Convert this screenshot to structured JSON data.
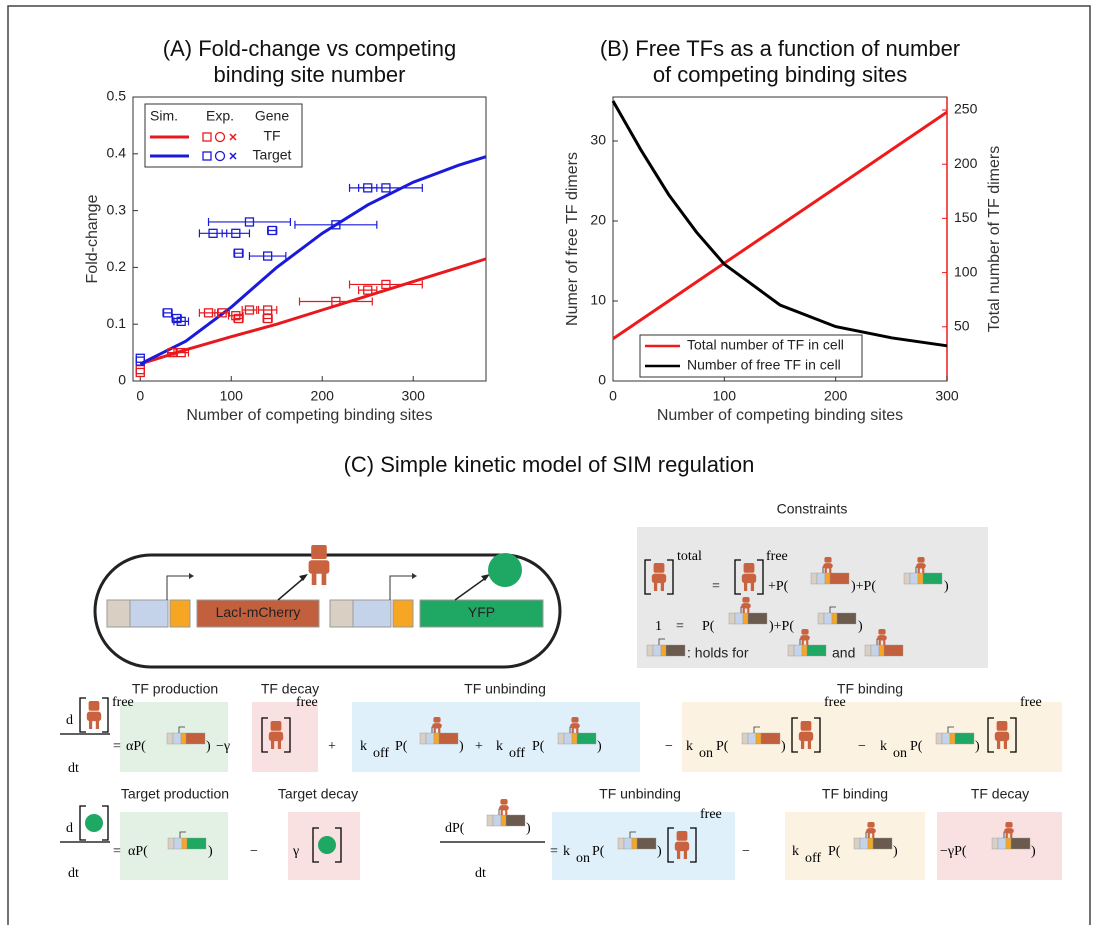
{
  "chart_data": [
    {
      "type": "line",
      "title": [
        "(A) Fold-change vs competing",
        "binding site number"
      ],
      "xlabel": "Number of competing binding sites",
      "ylabel": "Fold-change",
      "legend_headers": [
        "Sim.",
        "Exp.",
        "Gene"
      ],
      "x": [
        0,
        50,
        100,
        150,
        200,
        250,
        300,
        350,
        380
      ],
      "series": [
        {
          "name": "TF",
          "color": "#e8191e",
          "values": [
            0.03,
            0.055,
            0.078,
            0.1,
            0.125,
            0.15,
            0.175,
            0.2,
            0.215
          ]
        },
        {
          "name": "Target",
          "color": "#1a1adb",
          "values": [
            0.03,
            0.07,
            0.13,
            0.2,
            0.26,
            0.31,
            0.35,
            0.38,
            0.395
          ]
        }
      ],
      "experiments": [
        {
          "color": "#e8191e",
          "x": [
            0,
            0,
            35,
            45,
            75,
            90,
            105,
            108,
            120,
            140,
            140,
            215,
            250,
            270
          ],
          "values": [
            0.015,
            0.02,
            0.05,
            0.05,
            0.12,
            0.12,
            0.115,
            0.11,
            0.125,
            0.11,
            0.125,
            0.14,
            0.16,
            0.17
          ],
          "xerr": [
            0,
            0,
            5,
            8,
            10,
            8,
            8,
            5,
            8,
            5,
            10,
            40,
            10,
            40
          ]
        },
        {
          "color": "#1a1adb",
          "x": [
            0,
            0,
            30,
            40,
            45,
            80,
            105,
            108,
            120,
            140,
            145,
            215,
            250,
            270
          ],
          "values": [
            0.04,
            0.035,
            0.12,
            0.11,
            0.105,
            0.26,
            0.26,
            0.225,
            0.28,
            0.22,
            0.265,
            0.275,
            0.34,
            0.34
          ],
          "xerr": [
            0,
            0,
            5,
            5,
            8,
            15,
            15,
            5,
            45,
            20,
            5,
            45,
            10,
            40
          ]
        }
      ],
      "xlim": [
        -8,
        380
      ],
      "xticks": [
        0,
        100,
        200,
        300
      ],
      "ylim": [
        0,
        0.5
      ],
      "yticks": [
        0,
        0.1,
        0.2,
        0.3,
        0.4,
        0.5
      ]
    },
    {
      "type": "line",
      "title": [
        "(B) Free TFs as a function of number",
        "of competing binding sites"
      ],
      "xlabel": "Number of competing binding sites",
      "ylabel": "Numer of free TF dimers",
      "y2label": "Total number of TF dimers",
      "x": [
        0,
        25,
        50,
        75,
        100,
        150,
        200,
        250,
        300
      ],
      "series": [
        {
          "name": "Total number of TF in cell",
          "color": "#f01a1a",
          "axis": "y2",
          "values": [
            39,
            56.4,
            73.8,
            91.3,
            108.7,
            143.5,
            178.3,
            213.2,
            248
          ]
        },
        {
          "name": "Number of free TF in cell",
          "color": "#000000",
          "values": [
            35,
            28.9,
            23.3,
            18.6,
            14.6,
            9.5,
            6.8,
            5.4,
            4.4
          ]
        }
      ],
      "xlim": [
        0,
        300
      ],
      "xticks": [
        0,
        100,
        200,
        300
      ],
      "ylim": [
        0,
        35.5
      ],
      "yticks": [
        0,
        10,
        20,
        30
      ],
      "y2lim": [
        0,
        262
      ],
      "y2ticks": [
        50,
        100,
        150,
        200,
        250
      ],
      "legend": "lower left"
    }
  ],
  "diagram": {
    "title": "(C) Simple kinetic model of SIM regulation",
    "genes": [
      "LacI-mCherry",
      "YFP"
    ],
    "constraints": {
      "title": "Constraints",
      "row1": [
        "total",
        "=",
        "free",
        "+P(",
        ")+P(",
        ")"
      ],
      "row2": [
        "1",
        "=",
        "P(",
        ")+P(",
        ")"
      ],
      "row3": [
        ": holds for",
        "and"
      ]
    },
    "eq1": {
      "labels": [
        "TF production",
        "TF decay",
        "TF unbinding",
        "TF binding"
      ],
      "tokens": [
        "d",
        "dt",
        "free",
        "=",
        "αP(",
        ")",
        "−γ",
        "free",
        "+",
        "k",
        "off",
        "P(",
        ")",
        "+",
        "k",
        "off",
        "P(",
        ")",
        "−",
        "k",
        "on",
        "P(",
        ")",
        "free",
        "−",
        "k",
        "on",
        "P(",
        ")",
        "free"
      ]
    },
    "eq2": {
      "labels": [
        "Target production",
        "Target decay"
      ],
      "tokens": [
        "d",
        "dt",
        "=",
        "αP(",
        ")",
        "−",
        "γ"
      ]
    },
    "eq3": {
      "labels": [
        "TF unbinding",
        "TF binding",
        "TF decay"
      ],
      "tokens": [
        "dP(",
        ")",
        "dt",
        "=",
        "k",
        "on",
        "P(",
        ")",
        "free",
        "−",
        "k",
        "off",
        "P(",
        ")",
        "−γP(",
        ")"
      ]
    }
  }
}
